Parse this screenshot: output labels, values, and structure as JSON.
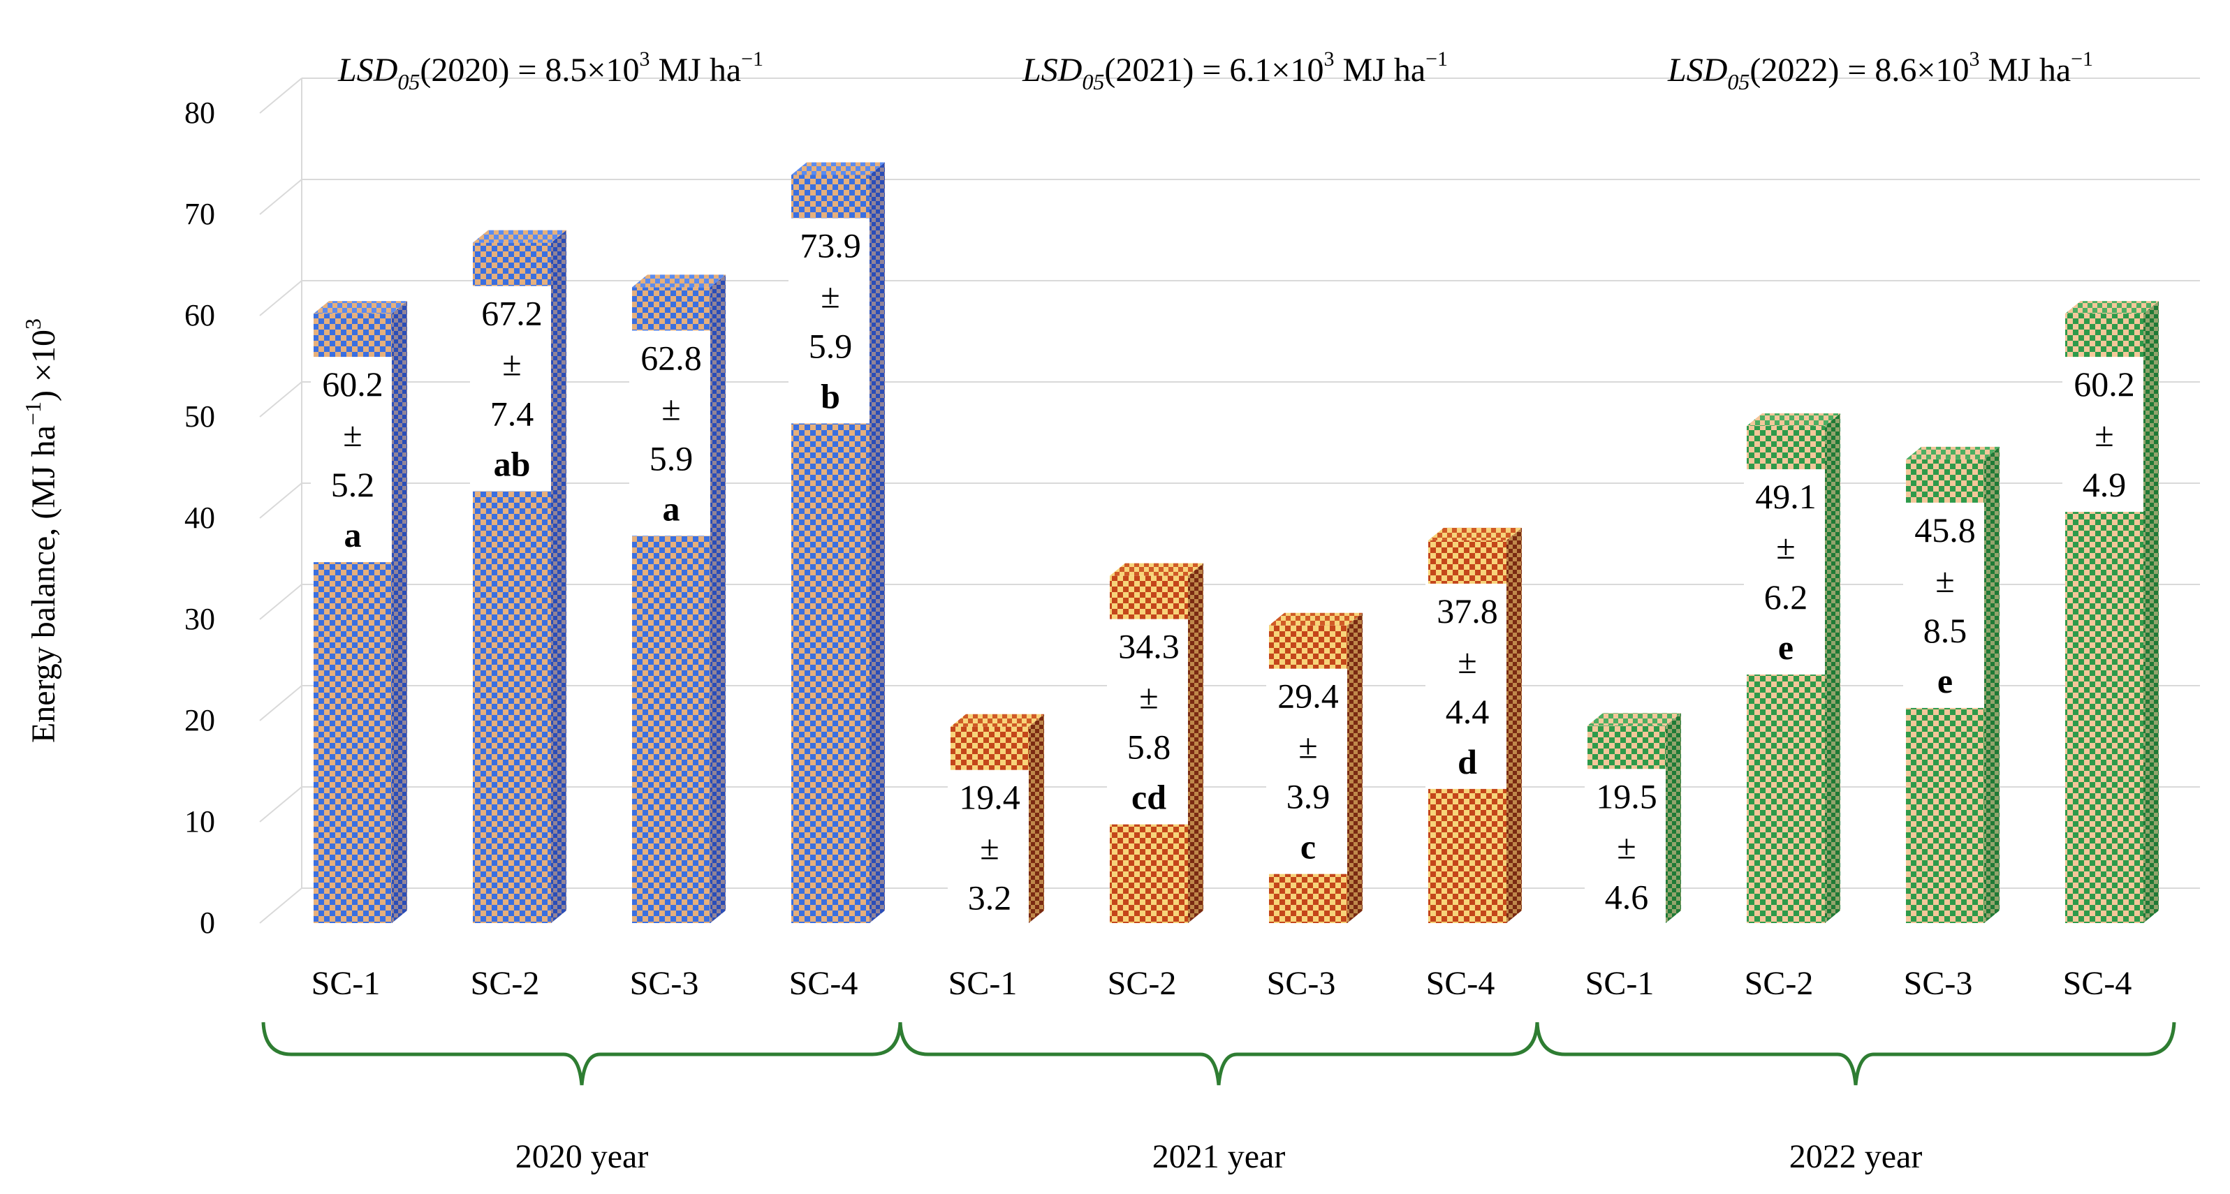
{
  "chart_data": {
    "type": "bar",
    "ylabel": "Energy balance,  (MJ ha",
    "ylabel_sup1": "−1",
    "ylabel_mid": ") ×10",
    "ylabel_sup2": "3",
    "ylim": [
      0,
      80
    ],
    "yticks": [
      0,
      10,
      20,
      30,
      40,
      50,
      60,
      70,
      80
    ],
    "colors": {
      "2020": {
        "light": "#e6b07c",
        "dark": "#3a6fe0",
        "side": "#2a4db8",
        "top": "#5b8bef"
      },
      "2021": {
        "light": "#f7d47a",
        "dark": "#c4461a",
        "side": "#7a2a12",
        "top": "#d05a26"
      },
      "2022": {
        "light": "#f4c79a",
        "dark": "#2e9a4a",
        "side": "#1f7a36",
        "top": "#4cae62"
      }
    },
    "groups": [
      {
        "year": "2020",
        "label": "2020 year",
        "lsd": {
          "prefix": "LSD",
          "sub": "05",
          "text": "(2020) = 8.5×10",
          "sup": "3",
          "unit": " MJ ha",
          "unit_sup": "−1"
        },
        "bars": [
          {
            "category": "SC-1",
            "value": 60.2,
            "sd": 5.2,
            "value_label": "60.2",
            "pm": "±",
            "sd_label": "5.2",
            "letter": "a"
          },
          {
            "category": "SC-2",
            "value": 67.2,
            "sd": 7.4,
            "value_label": "67.2",
            "pm": "±",
            "sd_label": "7.4",
            "letter": "ab"
          },
          {
            "category": "SC-3",
            "value": 62.8,
            "sd": 5.9,
            "value_label": "62.8",
            "pm": "±",
            "sd_label": "5.9",
            "letter": "a"
          },
          {
            "category": "SC-4",
            "value": 73.9,
            "sd": 5.9,
            "value_label": "73.9",
            "pm": "±",
            "sd_label": "5.9",
            "letter": "b"
          }
        ]
      },
      {
        "year": "2021",
        "label": "2021 year",
        "lsd": {
          "prefix": "LSD",
          "sub": "05",
          "text": "(2021) = 6.1×10",
          "sup": "3",
          "unit": " MJ ha",
          "unit_sup": "−1"
        },
        "bars": [
          {
            "category": "SC-1",
            "value": 19.4,
            "sd": 3.2,
            "value_label": "19.4",
            "pm": "±",
            "sd_label": "3.2",
            "letter": ""
          },
          {
            "category": "SC-2",
            "value": 34.3,
            "sd": 5.8,
            "value_label": "34.3",
            "pm": "±",
            "sd_label": "5.8",
            "letter": "cd"
          },
          {
            "category": "SC-3",
            "value": 29.4,
            "sd": 3.9,
            "value_label": "29.4",
            "pm": "±",
            "sd_label": "3.9",
            "letter": "c"
          },
          {
            "category": "SC-4",
            "value": 37.8,
            "sd": 4.4,
            "value_label": "37.8",
            "pm": "±",
            "sd_label": "4.4",
            "letter": "d"
          }
        ]
      },
      {
        "year": "2022",
        "label": "2022 year",
        "lsd": {
          "prefix": "LSD",
          "sub": "05",
          "text": "(2022) = 8.6×10",
          "sup": "3",
          "unit": " MJ ha",
          "unit_sup": "−1"
        },
        "bars": [
          {
            "category": "SC-1",
            "value": 19.5,
            "sd": 4.6,
            "value_label": "19.5",
            "pm": "±",
            "sd_label": "4.6",
            "letter": ""
          },
          {
            "category": "SC-2",
            "value": 49.1,
            "sd": 6.2,
            "value_label": "49.1",
            "pm": "±",
            "sd_label": "6.2",
            "letter": "e"
          },
          {
            "category": "SC-3",
            "value": 45.8,
            "sd": 8.5,
            "value_label": "45.8",
            "pm": "±",
            "sd_label": "8.5",
            "letter": "e"
          },
          {
            "category": "SC-4",
            "value": 60.2,
            "sd": 4.9,
            "value_label": "60.2",
            "pm": "±",
            "sd_label": "4.9",
            "letter": ""
          }
        ]
      }
    ]
  }
}
